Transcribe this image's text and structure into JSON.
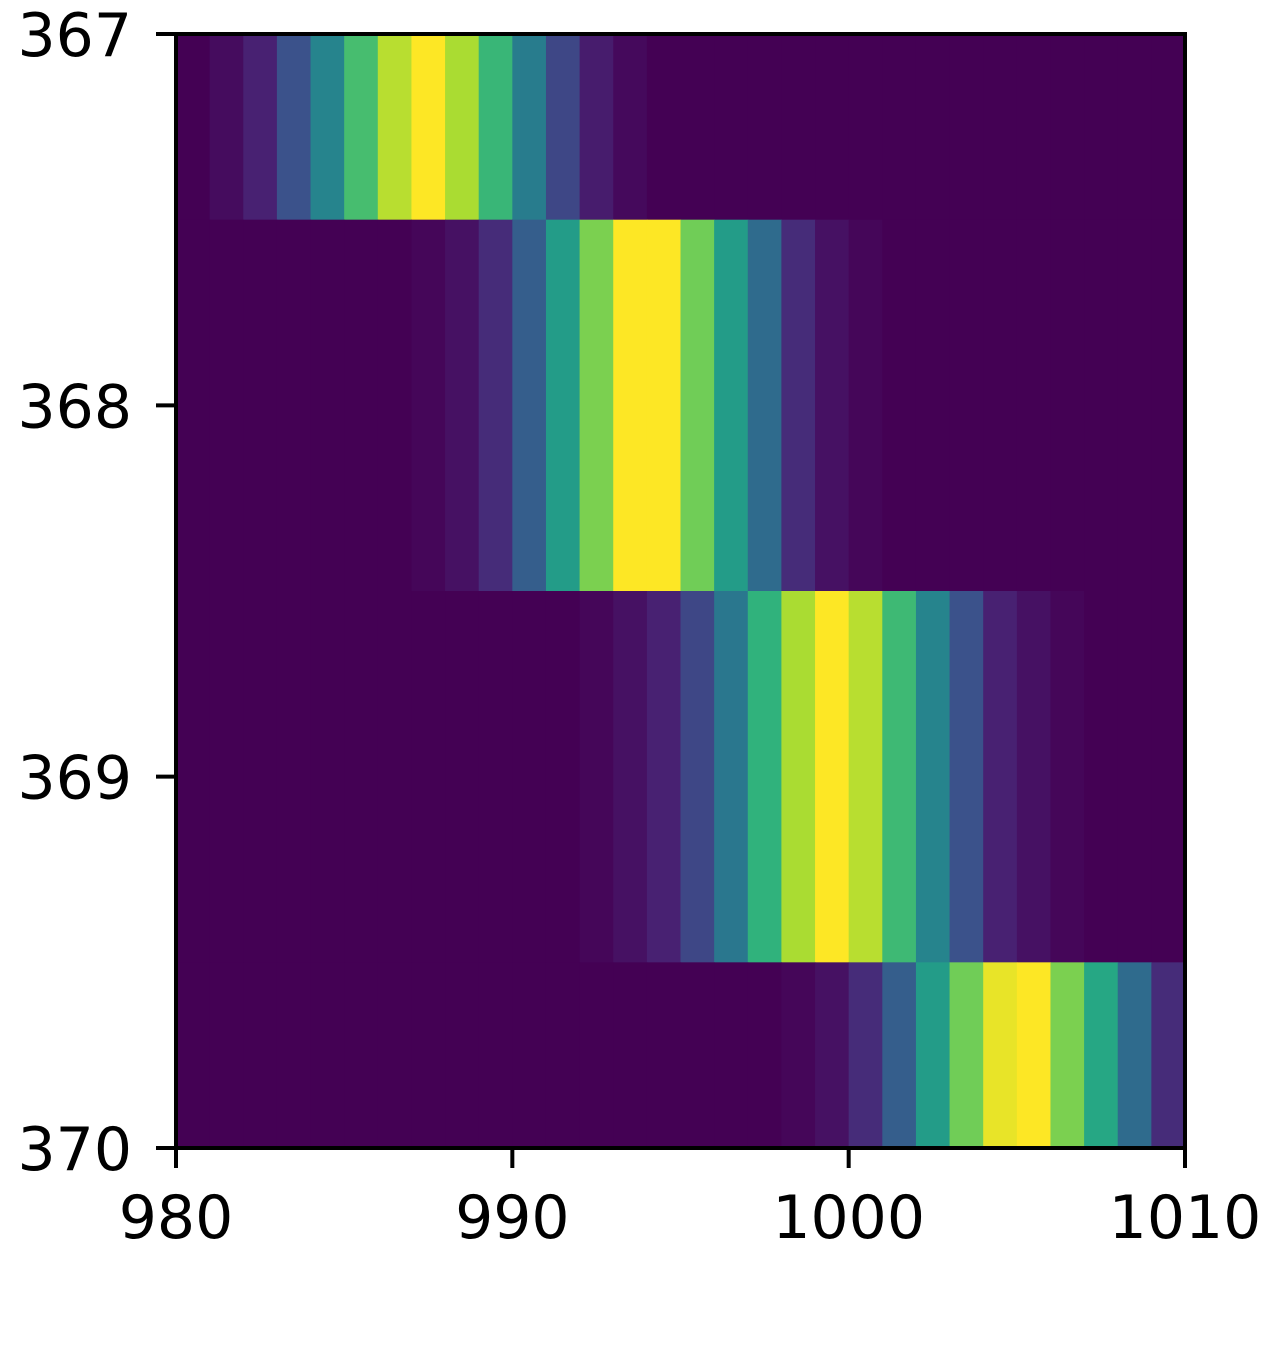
{
  "chart_data": {
    "type": "heatmap",
    "title": "",
    "xlabel": "",
    "ylabel": "",
    "colormap": "viridis",
    "xlim": [
      980,
      1010
    ],
    "ylim": [
      367,
      370
    ],
    "y_inverted": true,
    "cell_width": 1,
    "grid": false,
    "x_ticks": [
      {
        "value": 980,
        "label": "980"
      },
      {
        "value": 990,
        "label": "990"
      },
      {
        "value": 1000,
        "label": "1000"
      },
      {
        "value": 1010,
        "label": "1010"
      }
    ],
    "y_ticks": [
      {
        "value": 367,
        "label": "367"
      },
      {
        "value": 368,
        "label": "368"
      },
      {
        "value": 369,
        "label": "369"
      },
      {
        "value": 370,
        "label": "370"
      }
    ],
    "rows": [
      {
        "y_start": 367.0,
        "y_end": 367.5,
        "x_start": 980,
        "values": [
          0.0,
          0.04,
          0.12,
          0.25,
          0.45,
          0.7,
          0.9,
          1.0,
          0.88,
          0.67,
          0.42,
          0.22,
          0.1,
          0.03,
          0,
          0,
          0,
          0,
          0,
          0,
          0,
          0,
          0,
          0,
          0,
          0,
          0,
          0,
          0,
          0
        ]
      },
      {
        "y_start": 367.5,
        "y_end": 368.5,
        "x_start": 980,
        "values": [
          0,
          0,
          0,
          0,
          0,
          0,
          0,
          0.02,
          0.06,
          0.15,
          0.3,
          0.55,
          0.8,
          1.0,
          1.0,
          0.78,
          0.55,
          0.35,
          0.15,
          0.06,
          0.02,
          0,
          0,
          0,
          0,
          0,
          0,
          0,
          0,
          0
        ]
      },
      {
        "y_start": 368.5,
        "y_end": 369.5,
        "x_start": 980,
        "values": [
          0,
          0,
          0,
          0,
          0,
          0,
          0,
          0,
          0,
          0,
          0,
          0,
          0.02,
          0.06,
          0.12,
          0.22,
          0.4,
          0.65,
          0.88,
          1.0,
          0.9,
          0.68,
          0.45,
          0.25,
          0.12,
          0.06,
          0.02,
          0,
          0,
          0
        ]
      },
      {
        "y_start": 369.5,
        "y_end": 370.0,
        "x_start": 980,
        "values": [
          0,
          0,
          0,
          0,
          0,
          0,
          0,
          0,
          0,
          0,
          0,
          0,
          0,
          0,
          0,
          0,
          0,
          0,
          0.02,
          0.06,
          0.15,
          0.3,
          0.55,
          0.78,
          0.97,
          1.0,
          0.8,
          0.6,
          0.35,
          0.15
        ]
      }
    ]
  }
}
